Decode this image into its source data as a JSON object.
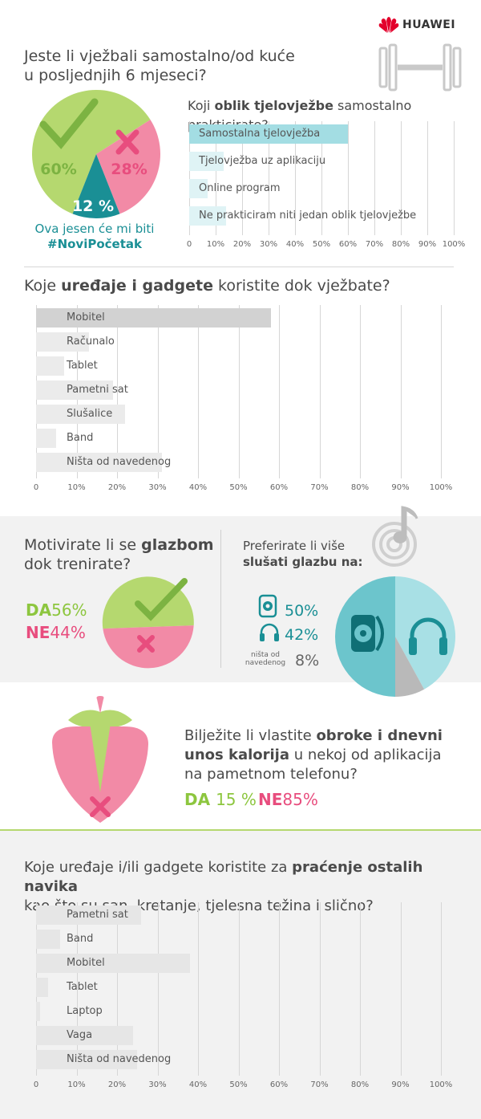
{
  "brand": {
    "name": "HUAWEI"
  },
  "section1": {
    "question": "Jeste li vježbali samostalno/od kuće u posljednjih 6 mjeseci?",
    "question_line1": "Jeste li vježbali samostalno/od kuće",
    "question_line2": "u posljednjih 6 mjeseci?",
    "slogan_line1": "Ova jesen će mi biti",
    "slogan_line2": "#NoviPočetak"
  },
  "form_question": {
    "pre": "Koji ",
    "bold": "oblik tjelovježbe",
    "post": " samostalno prakticirate?"
  },
  "devices_question": {
    "pre": "Koje ",
    "bold": "uređaje i gadgete",
    "post": " koristite dok vježbate?"
  },
  "music_question": {
    "line1_pre": "Motivirate li se ",
    "line1_bold": "glazbom",
    "line2": "dok trenirate?"
  },
  "music_answers": {
    "yes_label": "DA",
    "yes_value": "56%",
    "no_label": "NE",
    "no_value": "44%"
  },
  "listen_question": {
    "line1": "Preferirate li više",
    "line2": "slušati glazbu na:"
  },
  "listen_answers": {
    "speaker": "50%",
    "headphones": "42%",
    "none_line1": "ništa od",
    "none_line2": "navedenog",
    "none": "8%"
  },
  "calorie_question": {
    "line1_pre": "Bilježite li vlastite ",
    "line1_bold": "obroke i dnevni",
    "line2_bold": "unos kalorija",
    "line2_post": " u nekoj od aplikacija",
    "line3": "na pametnom telefonu?"
  },
  "calorie_answers": {
    "yes_label": "DA",
    "yes_value": "15 %",
    "no_label": "NE",
    "no_value": "85%"
  },
  "habits_question": {
    "line1_pre": "Koje uređaje i/ili gadgete koristite za ",
    "line1_bold": "praćenje ostalih navika",
    "line2": "kao što su san, kretanje, tjelesna težina i slično?"
  },
  "colors": {
    "green": "#b5d86f",
    "pink": "#f28aa6",
    "teal": "#1a8f95",
    "teal_light": "#a3dde3",
    "teal_mid": "#6cc5cc",
    "grey": "#e2e2e2",
    "grey_dark": "#bdbdbd",
    "magenta": "#e84d7e",
    "green_text": "#8dc63f",
    "huawei_red": "#e3002b"
  },
  "chart_data": [
    {
      "type": "pie",
      "title": "Jeste li vježbali samostalno/od kuće u posljednjih 6 mjeseci?",
      "slices": [
        {
          "label": "60%",
          "value": 60,
          "meaning": "DA"
        },
        {
          "label": "28%",
          "value": 28,
          "meaning": "NE"
        },
        {
          "label": "12 %",
          "value": 12
        }
      ]
    },
    {
      "type": "bar",
      "orientation": "horizontal",
      "title": "Koji oblik tjelovježbe samostalno prakticirate?",
      "categories": [
        "Samostalna tjelovježba",
        "Tjelovježba uz aplikaciju",
        "Online program",
        "Ne prakticiram niti jedan oblik tjelovježbe"
      ],
      "values": [
        60,
        13,
        7,
        14
      ],
      "xlim": [
        0,
        100
      ],
      "ticks": [
        "0",
        "10%",
        "20%",
        "30%",
        "40%",
        "50%",
        "60%",
        "70%",
        "80%",
        "90%",
        "100%"
      ],
      "grid": true
    },
    {
      "type": "bar",
      "orientation": "horizontal",
      "title": "Koje uređaje i gadgete koristite dok vježbate?",
      "categories": [
        "Mobitel",
        "Računalo",
        "Tablet",
        "Pametni sat",
        "Slušalice",
        "Band",
        "Ništa od navedenog"
      ],
      "values": [
        58,
        13,
        7,
        19,
        22,
        5,
        31
      ],
      "xlim": [
        0,
        100
      ],
      "ticks": [
        "0",
        "10%",
        "20%",
        "30%",
        "40%",
        "50%",
        "60%",
        "70%",
        "80%",
        "90%",
        "100%"
      ],
      "grid": true
    },
    {
      "type": "pie",
      "title": "Motivirate li se glazbom dok trenirate?",
      "slices": [
        {
          "label": "DA",
          "value": 56
        },
        {
          "label": "NE",
          "value": 44
        }
      ]
    },
    {
      "type": "pie",
      "title": "Preferirate li više slušati glazbu na:",
      "slices": [
        {
          "label": "50%",
          "value": 50
        },
        {
          "label": "42%",
          "value": 42
        },
        {
          "label": "ništa od navedenog",
          "value": 8
        }
      ]
    },
    {
      "type": "pie",
      "title": "Bilježite li vlastite obroke i dnevni unos kalorija u nekoj od aplikacija na pametnom telefonu?",
      "slices": [
        {
          "label": "DA",
          "value": 15
        },
        {
          "label": "NE",
          "value": 85
        }
      ]
    },
    {
      "type": "bar",
      "orientation": "horizontal",
      "title": "Koje uređaje i/ili gadgete koristite za praćenje ostalih navika kao što su san, kretanje, tjelesna težina i slično?",
      "categories": [
        "Pametni sat",
        "Band",
        "Mobitel",
        "Tablet",
        "Laptop",
        "Vaga",
        "Ništa od navedenog"
      ],
      "values": [
        26,
        6,
        38,
        3,
        1,
        24,
        25
      ],
      "xlim": [
        0,
        100
      ],
      "ticks": [
        "0",
        "10%",
        "20%",
        "30%",
        "40%",
        "50%",
        "60%",
        "70%",
        "80%",
        "90%",
        "100%"
      ],
      "grid": true
    }
  ]
}
